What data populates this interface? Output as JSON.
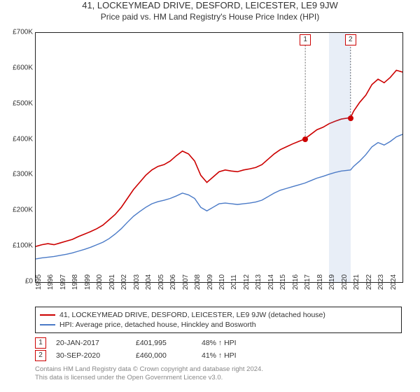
{
  "title": "41, LOCKEYMEAD DRIVE, DESFORD, LEICESTER, LE9 9JW",
  "subtitle": "Price paid vs. HM Land Registry's House Price Index (HPI)",
  "chart": {
    "type": "line",
    "background_color": "#ffffff",
    "axis_color": "#222222",
    "xlim": [
      1995,
      2025
    ],
    "ylim": [
      0,
      700000
    ],
    "ytick_step": 100000,
    "y_labels": [
      "£0",
      "£100K",
      "£200K",
      "£300K",
      "£400K",
      "£500K",
      "£600K",
      "£700K"
    ],
    "x_years": [
      1995,
      1996,
      1997,
      1998,
      1999,
      2000,
      2001,
      2002,
      2003,
      2004,
      2005,
      2006,
      2007,
      2008,
      2009,
      2010,
      2011,
      2012,
      2013,
      2014,
      2015,
      2016,
      2017,
      2018,
      2019,
      2020,
      2021,
      2022,
      2023,
      2024
    ],
    "series": [
      {
        "name": "property",
        "color": "#cc0000",
        "width": 1.6,
        "data": [
          [
            1995,
            100000
          ],
          [
            1995.5,
            105000
          ],
          [
            1996,
            108000
          ],
          [
            1996.5,
            105000
          ],
          [
            1997,
            110000
          ],
          [
            1997.5,
            115000
          ],
          [
            1998,
            120000
          ],
          [
            1998.5,
            128000
          ],
          [
            1999,
            135000
          ],
          [
            1999.5,
            142000
          ],
          [
            2000,
            150000
          ],
          [
            2000.5,
            160000
          ],
          [
            2001,
            175000
          ],
          [
            2001.5,
            190000
          ],
          [
            2002,
            210000
          ],
          [
            2002.5,
            235000
          ],
          [
            2003,
            260000
          ],
          [
            2003.5,
            280000
          ],
          [
            2004,
            300000
          ],
          [
            2004.5,
            315000
          ],
          [
            2005,
            325000
          ],
          [
            2005.5,
            330000
          ],
          [
            2006,
            340000
          ],
          [
            2006.5,
            355000
          ],
          [
            2007,
            368000
          ],
          [
            2007.5,
            360000
          ],
          [
            2008,
            340000
          ],
          [
            2008.5,
            300000
          ],
          [
            2009,
            280000
          ],
          [
            2009.5,
            295000
          ],
          [
            2010,
            310000
          ],
          [
            2010.5,
            315000
          ],
          [
            2011,
            312000
          ],
          [
            2011.5,
            310000
          ],
          [
            2012,
            315000
          ],
          [
            2012.5,
            318000
          ],
          [
            2013,
            322000
          ],
          [
            2013.5,
            330000
          ],
          [
            2014,
            345000
          ],
          [
            2014.5,
            360000
          ],
          [
            2015,
            372000
          ],
          [
            2015.5,
            380000
          ],
          [
            2016,
            388000
          ],
          [
            2016.5,
            395000
          ],
          [
            2017,
            402000
          ],
          [
            2017.5,
            415000
          ],
          [
            2018,
            428000
          ],
          [
            2018.5,
            435000
          ],
          [
            2019,
            445000
          ],
          [
            2019.5,
            452000
          ],
          [
            2020,
            458000
          ],
          [
            2020.75,
            462000
          ],
          [
            2021,
            480000
          ],
          [
            2021.5,
            505000
          ],
          [
            2022,
            525000
          ],
          [
            2022.5,
            555000
          ],
          [
            2023,
            570000
          ],
          [
            2023.5,
            560000
          ],
          [
            2024,
            575000
          ],
          [
            2024.5,
            595000
          ],
          [
            2025,
            590000
          ]
        ]
      },
      {
        "name": "hpi",
        "color": "#4a7ac7",
        "width": 1.4,
        "data": [
          [
            1995,
            65000
          ],
          [
            1995.5,
            68000
          ],
          [
            1996,
            70000
          ],
          [
            1996.5,
            72000
          ],
          [
            1997,
            75000
          ],
          [
            1997.5,
            78000
          ],
          [
            1998,
            82000
          ],
          [
            1998.5,
            87000
          ],
          [
            1999,
            92000
          ],
          [
            1999.5,
            98000
          ],
          [
            2000,
            105000
          ],
          [
            2000.5,
            112000
          ],
          [
            2001,
            122000
          ],
          [
            2001.5,
            135000
          ],
          [
            2002,
            150000
          ],
          [
            2002.5,
            168000
          ],
          [
            2003,
            185000
          ],
          [
            2003.5,
            198000
          ],
          [
            2004,
            210000
          ],
          [
            2004.5,
            220000
          ],
          [
            2005,
            226000
          ],
          [
            2005.5,
            230000
          ],
          [
            2006,
            235000
          ],
          [
            2006.5,
            242000
          ],
          [
            2007,
            250000
          ],
          [
            2007.5,
            245000
          ],
          [
            2008,
            235000
          ],
          [
            2008.5,
            210000
          ],
          [
            2009,
            200000
          ],
          [
            2009.5,
            210000
          ],
          [
            2010,
            220000
          ],
          [
            2010.5,
            222000
          ],
          [
            2011,
            220000
          ],
          [
            2011.5,
            218000
          ],
          [
            2012,
            220000
          ],
          [
            2012.5,
            222000
          ],
          [
            2013,
            225000
          ],
          [
            2013.5,
            230000
          ],
          [
            2014,
            240000
          ],
          [
            2014.5,
            250000
          ],
          [
            2015,
            258000
          ],
          [
            2015.5,
            263000
          ],
          [
            2016,
            268000
          ],
          [
            2016.5,
            273000
          ],
          [
            2017,
            278000
          ],
          [
            2017.5,
            285000
          ],
          [
            2018,
            292000
          ],
          [
            2018.5,
            297000
          ],
          [
            2019,
            303000
          ],
          [
            2019.5,
            308000
          ],
          [
            2020,
            312000
          ],
          [
            2020.75,
            315000
          ],
          [
            2021,
            325000
          ],
          [
            2021.5,
            340000
          ],
          [
            2022,
            358000
          ],
          [
            2022.5,
            380000
          ],
          [
            2023,
            392000
          ],
          [
            2023.5,
            385000
          ],
          [
            2024,
            395000
          ],
          [
            2024.5,
            408000
          ],
          [
            2025,
            415000
          ]
        ]
      }
    ],
    "markers": [
      {
        "x": 2017.05,
        "y": 401995,
        "label": "1",
        "color": "#cc0000"
      },
      {
        "x": 2020.75,
        "y": 460000,
        "label": "2",
        "color": "#cc0000"
      }
    ],
    "marker_connector_color": "#666666",
    "dot_color": "#cc0000",
    "shade_ranges": [
      {
        "from": 2019,
        "to": 2020.75,
        "color": "rgba(100,140,200,0.15)"
      }
    ]
  },
  "legend": {
    "items": [
      {
        "color": "#cc0000",
        "label": "41, LOCKEYMEAD DRIVE, DESFORD, LEICESTER, LE9 9JW (detached house)"
      },
      {
        "color": "#4a7ac7",
        "label": "HPI: Average price, detached house, Hinckley and Bosworth"
      }
    ]
  },
  "sale_points": [
    {
      "num": "1",
      "box_color": "#cc0000",
      "date": "20-JAN-2017",
      "price": "£401,995",
      "pct": "48% ↑ HPI"
    },
    {
      "num": "2",
      "box_color": "#cc0000",
      "date": "30-SEP-2020",
      "price": "£460,000",
      "pct": "41% ↑ HPI"
    }
  ],
  "footer": {
    "line1": "Contains HM Land Registry data © Crown copyright and database right 2024.",
    "line2": "This data is licensed under the Open Government Licence v3.0."
  }
}
